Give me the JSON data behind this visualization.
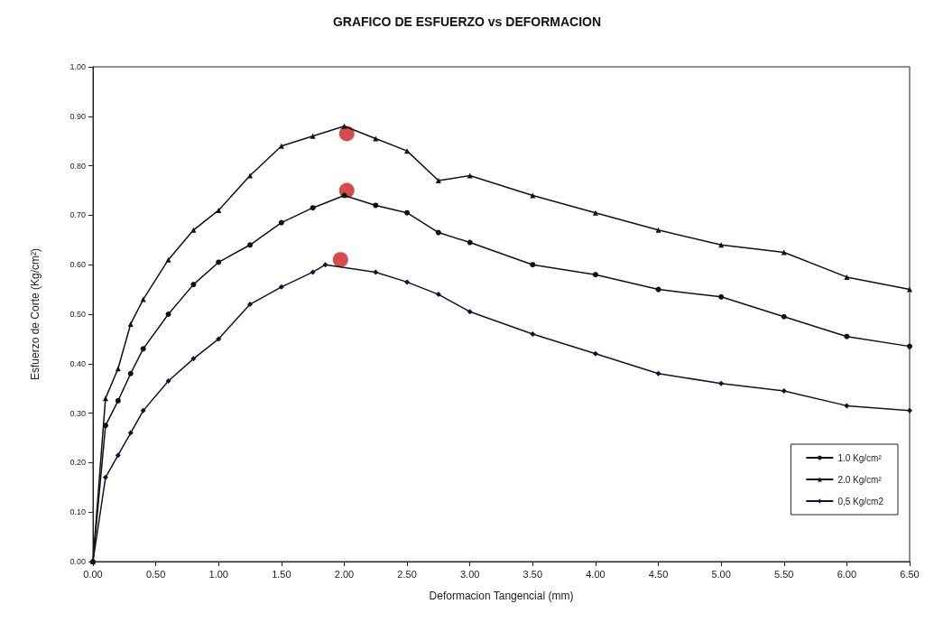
{
  "chart_data": {
    "type": "line",
    "title": "GRAFICO DE ESFUERZO vs DEFORMACION",
    "xlabel": "Deformacion Tangencial (mm)",
    "ylabel": "Esfuerzo de Corte (Kg/cm²)",
    "xlim": [
      0,
      6.5
    ],
    "xticks": [
      {
        "value": 0,
        "label": "0.00"
      },
      {
        "value": 0.5,
        "label": "0.50"
      },
      {
        "value": 1,
        "label": "1.00"
      },
      {
        "value": 1.5,
        "label": "1.50"
      },
      {
        "value": 2,
        "label": "2.00"
      },
      {
        "value": 2.5,
        "label": "2.50"
      },
      {
        "value": 3,
        "label": "3.00"
      },
      {
        "value": 3.5,
        "label": "3.50"
      },
      {
        "value": 4,
        "label": "4.00"
      },
      {
        "value": 4.5,
        "label": "4.50"
      },
      {
        "value": 5,
        "label": "5.00"
      },
      {
        "value": 5.5,
        "label": "5.50"
      },
      {
        "value": 6,
        "label": "6.00"
      },
      {
        "value": 6.5,
        "label": "6.50"
      }
    ],
    "ylim": [
      0,
      1
    ],
    "yticks": [
      {
        "value": 0,
        "label": "0.00"
      },
      {
        "value": 0.1,
        "label": "0.10"
      },
      {
        "value": 0.2,
        "label": "0.20"
      },
      {
        "value": 0.3,
        "label": "0.30"
      },
      {
        "value": 0.4,
        "label": "0.40"
      },
      {
        "value": 0.5,
        "label": "0.50"
      },
      {
        "value": 0.6,
        "label": "0.60"
      },
      {
        "value": 0.7,
        "label": "0.70"
      },
      {
        "value": 0.8,
        "label": "0.80"
      },
      {
        "value": 0.9,
        "label": "0.90"
      },
      {
        "value": 1,
        "label": "1.00"
      }
    ],
    "grid": false,
    "legend": "bottom right",
    "line_style": "solid",
    "series": [
      {
        "name": "1.0 Kg/cm²",
        "color": "#111111",
        "marker": "circle",
        "x": [
          0,
          0.1,
          0.2,
          0.3,
          0.4,
          0.6,
          0.8,
          1.0,
          1.25,
          1.5,
          1.75,
          2.0,
          2.25,
          2.5,
          2.75,
          3.0,
          3.5,
          4.0,
          4.5,
          5.0,
          5.5,
          6.0,
          6.5
        ],
        "values": [
          0,
          0.275,
          0.325,
          0.38,
          0.43,
          0.5,
          0.56,
          0.605,
          0.64,
          0.685,
          0.715,
          0.74,
          0.72,
          0.705,
          0.665,
          0.645,
          0.6,
          0.58,
          0.55,
          0.535,
          0.495,
          0.455,
          0.435
        ]
      },
      {
        "name": "2.0 Kg/cm²",
        "color": "#111111",
        "marker": "triangle",
        "x": [
          0,
          0.1,
          0.2,
          0.3,
          0.4,
          0.6,
          0.8,
          1.0,
          1.25,
          1.5,
          1.75,
          2.0,
          2.25,
          2.5,
          2.75,
          3.0,
          3.5,
          4.0,
          4.5,
          5.0,
          5.5,
          6.0,
          6.5
        ],
        "values": [
          0,
          0.33,
          0.39,
          0.48,
          0.53,
          0.61,
          0.67,
          0.71,
          0.78,
          0.84,
          0.86,
          0.88,
          0.855,
          0.83,
          0.77,
          0.78,
          0.74,
          0.705,
          0.67,
          0.64,
          0.625,
          0.575,
          0.55
        ]
      },
      {
        "name": "0,5 Kg/cm2",
        "color": "#111133",
        "marker": "diamond",
        "x": [
          0,
          0.1,
          0.2,
          0.3,
          0.4,
          0.6,
          0.8,
          1.0,
          1.25,
          1.5,
          1.75,
          1.85,
          2.25,
          2.5,
          2.75,
          3.0,
          3.5,
          4.0,
          4.5,
          5.0,
          5.5,
          6.0,
          6.5
        ],
        "values": [
          0,
          0.17,
          0.215,
          0.26,
          0.305,
          0.365,
          0.41,
          0.45,
          0.52,
          0.555,
          0.585,
          0.6,
          0.585,
          0.565,
          0.54,
          0.505,
          0.46,
          0.42,
          0.38,
          0.36,
          0.345,
          0.315,
          0.305
        ]
      },
      {
        "type": "scatter",
        "color": "#cc1f1f",
        "marker": "circle",
        "x": [
          2.02,
          2.02,
          1.97
        ],
        "values": [
          0.865,
          0.75,
          0.61
        ]
      }
    ]
  }
}
